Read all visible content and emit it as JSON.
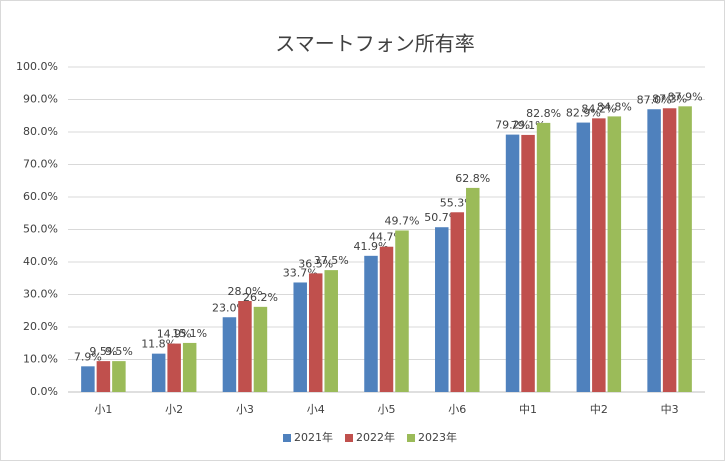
{
  "chart_data": {
    "type": "bar",
    "title": "スマートフォン所有率",
    "categories": [
      "小1",
      "小2",
      "小3",
      "小4",
      "小5",
      "小6",
      "中1",
      "中2",
      "中3"
    ],
    "series": [
      {
        "name": "2021年",
        "color": "#4f81bd",
        "values": [
          7.9,
          11.8,
          23.0,
          33.7,
          41.9,
          50.7,
          79.2,
          82.9,
          87.0
        ],
        "value_labels": [
          "7.9%",
          "11.8%",
          "23.0%",
          "33.7%",
          "41.9%",
          "50.7%",
          "79.2%",
          "82.9%",
          "87.0%"
        ]
      },
      {
        "name": "2022年",
        "color": "#c0504d",
        "values": [
          9.5,
          14.9,
          28.0,
          36.5,
          44.7,
          55.3,
          79.1,
          84.2,
          87.3
        ],
        "value_labels": [
          "9.5%",
          "14.9%",
          "28.0%",
          "36.5%",
          "44.7%",
          "55.3%",
          "79.1%",
          "84.2%",
          "87.3%"
        ]
      },
      {
        "name": "2023年",
        "color": "#9bbb59",
        "values": [
          9.5,
          15.1,
          26.2,
          37.5,
          49.7,
          62.8,
          82.8,
          84.8,
          87.9
        ],
        "value_labels": [
          "9.5%",
          "15.1%",
          "26.2%",
          "37.5%",
          "49.7%",
          "62.8%",
          "82.8%",
          "84.8%",
          "87.9%"
        ]
      }
    ],
    "ylim": [
      0,
      100
    ],
    "yticks": [
      {
        "value": 0,
        "label": "0.0%"
      },
      {
        "value": 10,
        "label": "10.0%"
      },
      {
        "value": 20,
        "label": "20.0%"
      },
      {
        "value": 30,
        "label": "30.0%"
      },
      {
        "value": 40,
        "label": "40.0%"
      },
      {
        "value": 50,
        "label": "50.0%"
      },
      {
        "value": 60,
        "label": "60.0%"
      },
      {
        "value": 70,
        "label": "70.0%"
      },
      {
        "value": 80,
        "label": "80.0%"
      },
      {
        "value": 90,
        "label": "90.0%"
      },
      {
        "value": 100,
        "label": "100.0%"
      }
    ],
    "grid": true,
    "legend": "bottom"
  }
}
